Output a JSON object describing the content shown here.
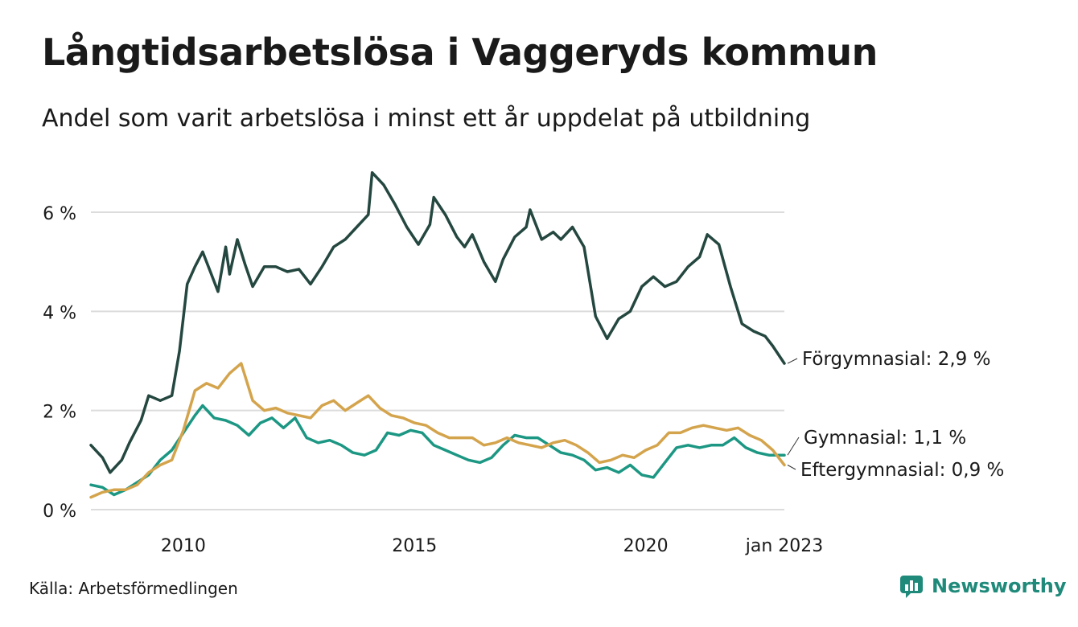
{
  "header": {
    "title": "Långtidsarbetslösa i Vaggeryds kommun",
    "subtitle": "Andel som varit arbetslösa i minst ett år uppdelat på utbildning"
  },
  "footer": {
    "source": "Källa: Arbetsförmedlingen",
    "brand": "Newsworthy"
  },
  "colors": {
    "forgymnasial": "#24473f",
    "gymnasial": "#1c9783",
    "eftergymnasial": "#d4a44d",
    "grid": "#dcdcdc",
    "brand": "#1f8a7a"
  },
  "chart_data": {
    "type": "line",
    "x_start": "2008-01",
    "x_end": "2023-01",
    "frequency": "monthly",
    "ylim": [
      0,
      7
    ],
    "y_ticks": [
      0,
      2,
      4,
      6
    ],
    "y_tick_labels": [
      "0 %",
      "2 %",
      "4 %",
      "6 %"
    ],
    "x_ticks": [
      "2010-01",
      "2015-01",
      "2020-01",
      "2023-01"
    ],
    "x_tick_labels": [
      "2010",
      "2015",
      "2020",
      "jan 2023"
    ],
    "grid": "horizontal",
    "series": [
      {
        "name": "Förgymnasial",
        "label": "Förgymnasial: 2,9 %",
        "color": "#24473f",
        "points": [
          [
            "2008-01",
            1.3
          ],
          [
            "2008-04",
            1.05
          ],
          [
            "2008-06",
            0.75
          ],
          [
            "2008-09",
            1.0
          ],
          [
            "2008-11",
            1.35
          ],
          [
            "2009-02",
            1.8
          ],
          [
            "2009-04",
            2.3
          ],
          [
            "2009-07",
            2.2
          ],
          [
            "2009-10",
            2.3
          ],
          [
            "2009-12",
            3.2
          ],
          [
            "2010-02",
            4.55
          ],
          [
            "2010-04",
            4.9
          ],
          [
            "2010-06",
            5.2
          ],
          [
            "2010-08",
            4.8
          ],
          [
            "2010-10",
            4.4
          ],
          [
            "2010-12",
            5.3
          ],
          [
            "2011-01",
            4.75
          ],
          [
            "2011-03",
            5.45
          ],
          [
            "2011-05",
            4.95
          ],
          [
            "2011-07",
            4.5
          ],
          [
            "2011-10",
            4.9
          ],
          [
            "2012-01",
            4.9
          ],
          [
            "2012-04",
            4.8
          ],
          [
            "2012-07",
            4.85
          ],
          [
            "2012-10",
            4.55
          ],
          [
            "2013-01",
            4.9
          ],
          [
            "2013-04",
            5.3
          ],
          [
            "2013-07",
            5.45
          ],
          [
            "2013-10",
            5.7
          ],
          [
            "2014-01",
            5.95
          ],
          [
            "2014-02",
            6.8
          ],
          [
            "2014-05",
            6.55
          ],
          [
            "2014-08",
            6.15
          ],
          [
            "2014-11",
            5.7
          ],
          [
            "2015-02",
            5.35
          ],
          [
            "2015-05",
            5.75
          ],
          [
            "2015-06",
            6.3
          ],
          [
            "2015-09",
            5.95
          ],
          [
            "2015-12",
            5.5
          ],
          [
            "2016-02",
            5.3
          ],
          [
            "2016-04",
            5.55
          ],
          [
            "2016-07",
            5.0
          ],
          [
            "2016-10",
            4.6
          ],
          [
            "2016-12",
            5.05
          ],
          [
            "2017-03",
            5.5
          ],
          [
            "2017-06",
            5.7
          ],
          [
            "2017-07",
            6.05
          ],
          [
            "2017-10",
            5.45
          ],
          [
            "2018-01",
            5.6
          ],
          [
            "2018-03",
            5.45
          ],
          [
            "2018-06",
            5.7
          ],
          [
            "2018-09",
            5.3
          ],
          [
            "2018-12",
            3.9
          ],
          [
            "2019-03",
            3.45
          ],
          [
            "2019-06",
            3.85
          ],
          [
            "2019-09",
            4.0
          ],
          [
            "2019-12",
            4.5
          ],
          [
            "2020-03",
            4.7
          ],
          [
            "2020-06",
            4.5
          ],
          [
            "2020-09",
            4.6
          ],
          [
            "2020-12",
            4.9
          ],
          [
            "2021-03",
            5.1
          ],
          [
            "2021-05",
            5.55
          ],
          [
            "2021-08",
            5.35
          ],
          [
            "2021-11",
            4.5
          ],
          [
            "2022-02",
            3.75
          ],
          [
            "2022-05",
            3.6
          ],
          [
            "2022-08",
            3.5
          ],
          [
            "2022-10",
            3.3
          ],
          [
            "2023-01",
            2.95
          ]
        ]
      },
      {
        "name": "Gymnasial",
        "label": "Gymnasial: 1,1 %",
        "color": "#1c9783",
        "points": [
          [
            "2008-01",
            0.5
          ],
          [
            "2008-04",
            0.45
          ],
          [
            "2008-07",
            0.3
          ],
          [
            "2008-10",
            0.4
          ],
          [
            "2009-01",
            0.55
          ],
          [
            "2009-04",
            0.7
          ],
          [
            "2009-07",
            1.0
          ],
          [
            "2009-10",
            1.2
          ],
          [
            "2010-01",
            1.55
          ],
          [
            "2010-04",
            1.9
          ],
          [
            "2010-06",
            2.1
          ],
          [
            "2010-09",
            1.85
          ],
          [
            "2010-12",
            1.8
          ],
          [
            "2011-03",
            1.7
          ],
          [
            "2011-06",
            1.5
          ],
          [
            "2011-09",
            1.75
          ],
          [
            "2011-12",
            1.85
          ],
          [
            "2012-03",
            1.65
          ],
          [
            "2012-06",
            1.85
          ],
          [
            "2012-09",
            1.45
          ],
          [
            "2012-12",
            1.35
          ],
          [
            "2013-03",
            1.4
          ],
          [
            "2013-06",
            1.3
          ],
          [
            "2013-09",
            1.15
          ],
          [
            "2013-12",
            1.1
          ],
          [
            "2014-03",
            1.2
          ],
          [
            "2014-06",
            1.55
          ],
          [
            "2014-09",
            1.5
          ],
          [
            "2014-12",
            1.6
          ],
          [
            "2015-03",
            1.55
          ],
          [
            "2015-06",
            1.3
          ],
          [
            "2015-09",
            1.2
          ],
          [
            "2015-12",
            1.1
          ],
          [
            "2016-03",
            1.0
          ],
          [
            "2016-06",
            0.95
          ],
          [
            "2016-09",
            1.05
          ],
          [
            "2016-12",
            1.3
          ],
          [
            "2017-03",
            1.5
          ],
          [
            "2017-06",
            1.45
          ],
          [
            "2017-09",
            1.45
          ],
          [
            "2017-12",
            1.3
          ],
          [
            "2018-03",
            1.15
          ],
          [
            "2018-06",
            1.1
          ],
          [
            "2018-09",
            1.0
          ],
          [
            "2018-12",
            0.8
          ],
          [
            "2019-03",
            0.85
          ],
          [
            "2019-06",
            0.75
          ],
          [
            "2019-09",
            0.9
          ],
          [
            "2019-12",
            0.7
          ],
          [
            "2020-03",
            0.65
          ],
          [
            "2020-06",
            0.95
          ],
          [
            "2020-09",
            1.25
          ],
          [
            "2020-12",
            1.3
          ],
          [
            "2021-03",
            1.25
          ],
          [
            "2021-06",
            1.3
          ],
          [
            "2021-09",
            1.3
          ],
          [
            "2021-12",
            1.45
          ],
          [
            "2022-03",
            1.25
          ],
          [
            "2022-06",
            1.15
          ],
          [
            "2022-09",
            1.1
          ],
          [
            "2023-01",
            1.1
          ]
        ]
      },
      {
        "name": "Eftergymnasial",
        "label": "Eftergymnasial: 0,9 %",
        "color": "#d4a44d",
        "points": [
          [
            "2008-01",
            0.25
          ],
          [
            "2008-04",
            0.35
          ],
          [
            "2008-07",
            0.4
          ],
          [
            "2008-10",
            0.4
          ],
          [
            "2009-01",
            0.5
          ],
          [
            "2009-04",
            0.75
          ],
          [
            "2009-07",
            0.9
          ],
          [
            "2009-10",
            1.0
          ],
          [
            "2010-01",
            1.6
          ],
          [
            "2010-04",
            2.4
          ],
          [
            "2010-07",
            2.55
          ],
          [
            "2010-10",
            2.45
          ],
          [
            "2011-01",
            2.75
          ],
          [
            "2011-04",
            2.95
          ],
          [
            "2011-07",
            2.2
          ],
          [
            "2011-10",
            2.0
          ],
          [
            "2012-01",
            2.05
          ],
          [
            "2012-04",
            1.95
          ],
          [
            "2012-07",
            1.9
          ],
          [
            "2012-10",
            1.85
          ],
          [
            "2013-01",
            2.1
          ],
          [
            "2013-04",
            2.2
          ],
          [
            "2013-07",
            2.0
          ],
          [
            "2013-10",
            2.15
          ],
          [
            "2014-01",
            2.3
          ],
          [
            "2014-04",
            2.05
          ],
          [
            "2014-07",
            1.9
          ],
          [
            "2014-10",
            1.85
          ],
          [
            "2015-01",
            1.75
          ],
          [
            "2015-04",
            1.7
          ],
          [
            "2015-07",
            1.55
          ],
          [
            "2015-10",
            1.45
          ],
          [
            "2016-01",
            1.45
          ],
          [
            "2016-04",
            1.45
          ],
          [
            "2016-07",
            1.3
          ],
          [
            "2016-10",
            1.35
          ],
          [
            "2017-01",
            1.45
          ],
          [
            "2017-04",
            1.35
          ],
          [
            "2017-07",
            1.3
          ],
          [
            "2017-10",
            1.25
          ],
          [
            "2018-01",
            1.35
          ],
          [
            "2018-04",
            1.4
          ],
          [
            "2018-07",
            1.3
          ],
          [
            "2018-10",
            1.15
          ],
          [
            "2019-01",
            0.95
          ],
          [
            "2019-04",
            1.0
          ],
          [
            "2019-07",
            1.1
          ],
          [
            "2019-10",
            1.05
          ],
          [
            "2020-01",
            1.2
          ],
          [
            "2020-04",
            1.3
          ],
          [
            "2020-07",
            1.55
          ],
          [
            "2020-10",
            1.55
          ],
          [
            "2021-01",
            1.65
          ],
          [
            "2021-04",
            1.7
          ],
          [
            "2021-07",
            1.65
          ],
          [
            "2021-10",
            1.6
          ],
          [
            "2022-01",
            1.65
          ],
          [
            "2022-04",
            1.5
          ],
          [
            "2022-07",
            1.4
          ],
          [
            "2022-10",
            1.2
          ],
          [
            "2023-01",
            0.9
          ]
        ]
      }
    ]
  }
}
